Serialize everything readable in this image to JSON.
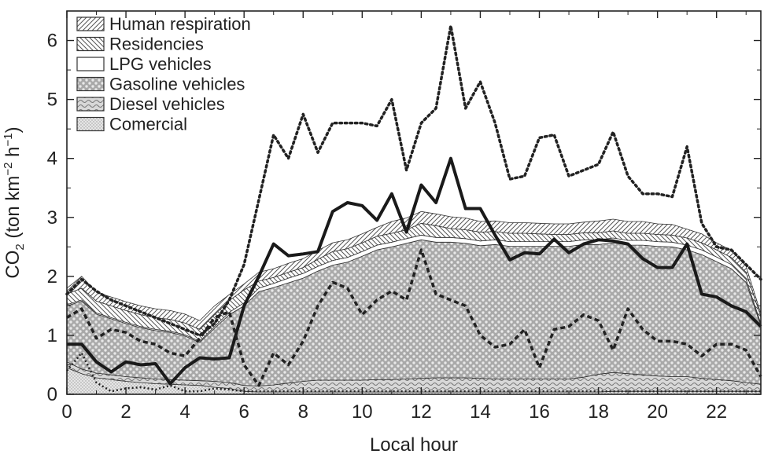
{
  "chart_data": {
    "type": "area",
    "xlabel": "Local hour",
    "ylabel": {
      "prefix": "CO",
      "sub": "2",
      "mid": " (ton km",
      "sup1": "−2",
      "mid2": " h",
      "sup2": "−1",
      "suffix": ")"
    },
    "xlim": [
      0,
      23.5
    ],
    "ylim": [
      0,
      6.5
    ],
    "xticks": [
      0,
      2,
      4,
      6,
      8,
      10,
      12,
      14,
      16,
      18,
      20,
      22
    ],
    "yticks": [
      0,
      1,
      2,
      3,
      4,
      5,
      6
    ],
    "grid": false,
    "legend_position": "top-left",
    "legend": [
      {
        "name": "Human respiration",
        "pattern": "diag-right"
      },
      {
        "name": "Residencies",
        "pattern": "diag-left"
      },
      {
        "name": "LPG vehicles",
        "pattern": "blank"
      },
      {
        "name": "Gasoline vehicles",
        "pattern": "dots"
      },
      {
        "name": "Diesel vehicles",
        "pattern": "wave"
      },
      {
        "name": "Comercial",
        "pattern": "fine-dots"
      }
    ],
    "x": [
      0,
      0.5,
      1,
      1.5,
      2,
      2.5,
      3,
      3.5,
      4,
      4.5,
      5,
      5.5,
      6,
      6.5,
      7,
      7.5,
      8,
      8.5,
      9,
      9.5,
      10,
      10.5,
      11,
      11.5,
      12,
      12.5,
      13,
      13.5,
      14,
      14.5,
      15,
      15.5,
      16,
      16.5,
      17,
      17.5,
      18,
      18.5,
      19,
      19.5,
      20,
      20.5,
      21,
      21.5,
      22,
      22.5,
      23,
      23.5
    ],
    "stacked_series": [
      {
        "name": "Comercial",
        "values": [
          0.45,
          0.35,
          0.28,
          0.25,
          0.22,
          0.2,
          0.18,
          0.17,
          0.16,
          0.15,
          0.12,
          0.1,
          0.05,
          0.04,
          0.04,
          0.04,
          0.04,
          0.04,
          0.04,
          0.04,
          0.04,
          0.04,
          0.04,
          0.04,
          0.04,
          0.04,
          0.04,
          0.04,
          0.04,
          0.04,
          0.04,
          0.04,
          0.04,
          0.04,
          0.04,
          0.04,
          0.04,
          0.05,
          0.05,
          0.05,
          0.05,
          0.05,
          0.05,
          0.05,
          0.05,
          0.05,
          0.05,
          0.05
        ]
      },
      {
        "name": "Diesel vehicles",
        "values": [
          0.1,
          0.08,
          0.08,
          0.08,
          0.08,
          0.08,
          0.08,
          0.08,
          0.08,
          0.08,
          0.1,
          0.1,
          0.1,
          0.1,
          0.12,
          0.15,
          0.18,
          0.2,
          0.2,
          0.2,
          0.2,
          0.21,
          0.21,
          0.22,
          0.23,
          0.24,
          0.24,
          0.24,
          0.23,
          0.22,
          0.22,
          0.22,
          0.22,
          0.22,
          0.22,
          0.25,
          0.3,
          0.32,
          0.3,
          0.28,
          0.26,
          0.25,
          0.25,
          0.22,
          0.2,
          0.18,
          0.15,
          0.12
        ]
      },
      {
        "name": "Gasoline vehicles",
        "values": [
          0.95,
          1.15,
          1.0,
          0.95,
          0.9,
          0.85,
          0.82,
          0.8,
          0.75,
          0.65,
          0.9,
          1.15,
          1.35,
          1.6,
          1.65,
          1.7,
          1.75,
          1.85,
          1.95,
          2.0,
          2.1,
          2.2,
          2.25,
          2.3,
          2.35,
          2.3,
          2.3,
          2.28,
          2.25,
          2.28,
          2.25,
          2.25,
          2.25,
          2.25,
          2.25,
          2.25,
          2.2,
          2.2,
          2.18,
          2.2,
          2.2,
          2.2,
          2.15,
          2.1,
          2.0,
          1.9,
          1.7,
          1.0
        ]
      },
      {
        "name": "LPG vehicles",
        "values": [
          0.02,
          0.02,
          0.02,
          0.02,
          0.02,
          0.02,
          0.02,
          0.02,
          0.02,
          0.02,
          0.03,
          0.04,
          0.05,
          0.06,
          0.07,
          0.08,
          0.08,
          0.08,
          0.08,
          0.08,
          0.08,
          0.08,
          0.08,
          0.08,
          0.08,
          0.08,
          0.08,
          0.08,
          0.08,
          0.08,
          0.08,
          0.08,
          0.08,
          0.08,
          0.08,
          0.08,
          0.08,
          0.08,
          0.08,
          0.08,
          0.08,
          0.08,
          0.08,
          0.08,
          0.08,
          0.07,
          0.05,
          0.03
        ]
      },
      {
        "name": "Residencies",
        "values": [
          0.18,
          0.2,
          0.2,
          0.2,
          0.2,
          0.2,
          0.2,
          0.2,
          0.2,
          0.2,
          0.2,
          0.2,
          0.22,
          0.12,
          0.1,
          0.1,
          0.1,
          0.12,
          0.15,
          0.15,
          0.15,
          0.15,
          0.15,
          0.15,
          0.2,
          0.2,
          0.15,
          0.15,
          0.15,
          0.14,
          0.14,
          0.14,
          0.13,
          0.12,
          0.12,
          0.12,
          0.12,
          0.12,
          0.12,
          0.12,
          0.12,
          0.12,
          0.12,
          0.12,
          0.12,
          0.12,
          0.12,
          0.12
        ]
      },
      {
        "name": "Human respiration",
        "values": [
          0.1,
          0.2,
          0.15,
          0.15,
          0.15,
          0.15,
          0.15,
          0.15,
          0.15,
          0.15,
          0.15,
          0.1,
          0.1,
          0.15,
          0.15,
          0.15,
          0.15,
          0.15,
          0.15,
          0.15,
          0.15,
          0.15,
          0.2,
          0.2,
          0.2,
          0.2,
          0.2,
          0.2,
          0.18,
          0.18,
          0.18,
          0.18,
          0.18,
          0.18,
          0.18,
          0.18,
          0.2,
          0.2,
          0.2,
          0.2,
          0.18,
          0.18,
          0.15,
          0.15,
          0.12,
          0.12,
          0.1,
          0.05
        ]
      }
    ],
    "line_series": [
      {
        "style": "solid-thick",
        "values": [
          0.85,
          0.85,
          0.55,
          0.38,
          0.55,
          0.5,
          0.52,
          0.18,
          0.45,
          0.62,
          0.6,
          0.62,
          1.5,
          2.0,
          2.55,
          2.35,
          2.38,
          2.42,
          3.1,
          3.25,
          3.2,
          2.95,
          3.4,
          2.75,
          3.55,
          3.25,
          4.0,
          3.15,
          3.15,
          2.7,
          2.28,
          2.4,
          2.38,
          2.63,
          2.4,
          2.55,
          2.62,
          2.6,
          2.55,
          2.3,
          2.15,
          2.15,
          2.55,
          1.7,
          1.65,
          1.5,
          1.4,
          1.15
        ]
      },
      {
        "style": "dotted",
        "values": [
          1.7,
          1.95,
          1.75,
          1.6,
          1.5,
          1.4,
          1.3,
          1.2,
          1.1,
          1.0,
          1.2,
          1.6,
          2.2,
          3.3,
          4.4,
          4.0,
          4.75,
          4.1,
          4.6,
          4.6,
          4.6,
          4.55,
          5.0,
          3.8,
          4.6,
          4.85,
          6.25,
          4.85,
          5.3,
          4.6,
          3.65,
          3.7,
          4.35,
          4.4,
          3.7,
          3.8,
          3.9,
          4.45,
          3.7,
          3.4,
          3.4,
          3.35,
          4.2,
          2.9,
          2.5,
          2.45,
          2.2,
          1.95
        ]
      },
      {
        "style": "dashed",
        "values": [
          1.3,
          1.45,
          0.95,
          1.1,
          1.05,
          0.9,
          0.85,
          0.7,
          0.65,
          0.95,
          1.3,
          1.4,
          0.5,
          0.15,
          0.7,
          0.5,
          0.9,
          1.5,
          1.9,
          1.8,
          1.35,
          1.6,
          1.75,
          1.6,
          2.45,
          1.7,
          1.6,
          1.5,
          1.0,
          0.8,
          0.85,
          1.1,
          0.45,
          1.1,
          1.15,
          1.35,
          1.25,
          0.75,
          1.45,
          1.1,
          0.9,
          0.9,
          0.85,
          0.65,
          0.85,
          0.85,
          0.75,
          0.3
        ]
      },
      {
        "style": "dotted-fine",
        "values": [
          0.4,
          0.7,
          0.2,
          0.05,
          0.1,
          0.12,
          0.08,
          0.15,
          0.05,
          0.05,
          0.1,
          0.08,
          0.05,
          0.05,
          0.05,
          0.05,
          0.05,
          0.05,
          0.05,
          0.05,
          0.05,
          0.05,
          0.05,
          0.05,
          0.05,
          0.05,
          0.05,
          0.05,
          0.05,
          0.05,
          0.05,
          0.05,
          0.05,
          0.05,
          0.05,
          0.05,
          0.05,
          0.05,
          0.05,
          0.05,
          0.05,
          0.05,
          0.05,
          0.05,
          0.05,
          0.05,
          0.05,
          0.05
        ]
      }
    ]
  }
}
